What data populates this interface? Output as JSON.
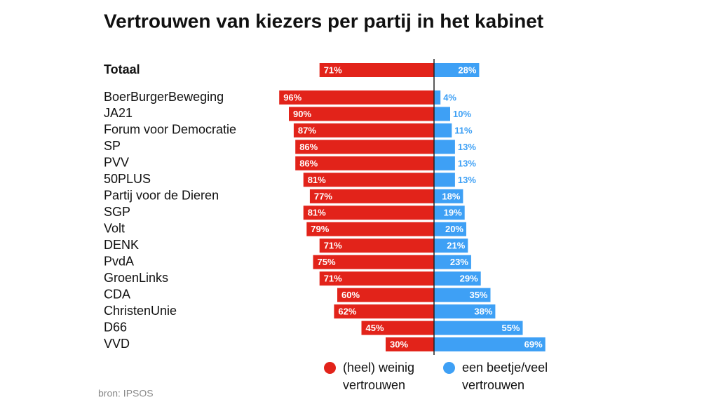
{
  "chart_data": {
    "type": "diverging-bar",
    "title": "Vertrouwen van kiezers per partij in het kabinet",
    "source": "bron: IPSOS",
    "categories": [
      "Totaal",
      "BoerBurgerBeweging",
      "JA21",
      "Forum voor Democratie",
      "SP",
      "PVV",
      "50PLUS",
      "Partij voor de Dieren",
      "SGP",
      "Volt",
      "DENK",
      "PvdA",
      "GroenLinks",
      "CDA",
      "ChristenUnie",
      "D66",
      "VVD"
    ],
    "series": [
      {
        "name": "(heel) weinig vertrouwen",
        "color": "#e2231a",
        "values": [
          71,
          96,
          90,
          87,
          86,
          86,
          81,
          77,
          81,
          79,
          71,
          75,
          71,
          60,
          62,
          45,
          30
        ],
        "value_labels": [
          "71%",
          "96%",
          "90%",
          "87%",
          "86%",
          "86%",
          "81%",
          "77%",
          "81%",
          "79%",
          "71%",
          "75%",
          "71%",
          "60%",
          "62%",
          "45%",
          "30%"
        ]
      },
      {
        "name": "een beetje/veel vertrouwen",
        "color": "#3ea0f5",
        "values": [
          28,
          4,
          10,
          11,
          13,
          13,
          13,
          18,
          19,
          20,
          21,
          23,
          29,
          35,
          38,
          55,
          69
        ],
        "value_labels": [
          "28%",
          "4%",
          "10%",
          "11%",
          "13%",
          "13%",
          "13%",
          "18%",
          "19%",
          "20%",
          "21%",
          "23%",
          "29%",
          "35%",
          "38%",
          "55%",
          "69%"
        ]
      }
    ]
  }
}
